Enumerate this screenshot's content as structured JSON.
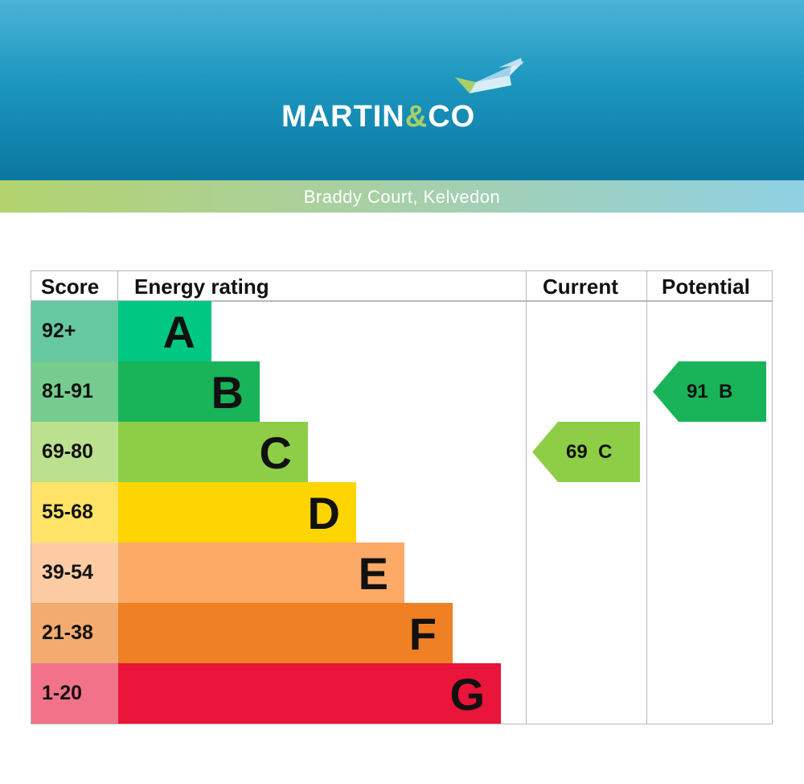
{
  "header": {
    "brand_main": "MARTIN",
    "brand_amp": "&",
    "brand_end": "CO",
    "address": "Braddy Court, Kelvedon",
    "colors": {
      "brand_blue": "#1d97c0",
      "brand_green": "#a8d069"
    }
  },
  "chart_data": {
    "type": "table",
    "columns": [
      "Score",
      "Energy rating",
      "Current",
      "Potential"
    ],
    "bands": [
      {
        "score": "92+",
        "letter": "A",
        "color": "#00c781",
        "score_color": "#66c8a0"
      },
      {
        "score": "81-91",
        "letter": "B",
        "color": "#19b459",
        "score_color": "#75cc8e"
      },
      {
        "score": "69-80",
        "letter": "C",
        "color": "#8dce46",
        "score_color": "#bbe08e"
      },
      {
        "score": "55-68",
        "letter": "D",
        "color": "#ffd500",
        "score_color": "#ffe366"
      },
      {
        "score": "39-54",
        "letter": "E",
        "color": "#fcaa65",
        "score_color": "#fdcca3"
      },
      {
        "score": "21-38",
        "letter": "F",
        "color": "#ef8023",
        "score_color": "#f4ab70"
      },
      {
        "score": "1-20",
        "letter": "G",
        "color": "#e9153b",
        "score_color": "#f27389"
      }
    ],
    "current": {
      "value": 69,
      "letter": "C",
      "label": "69  C",
      "color": "#8dce46"
    },
    "potential": {
      "value": 91,
      "letter": "B",
      "label": "91  B",
      "color": "#19b459"
    }
  }
}
